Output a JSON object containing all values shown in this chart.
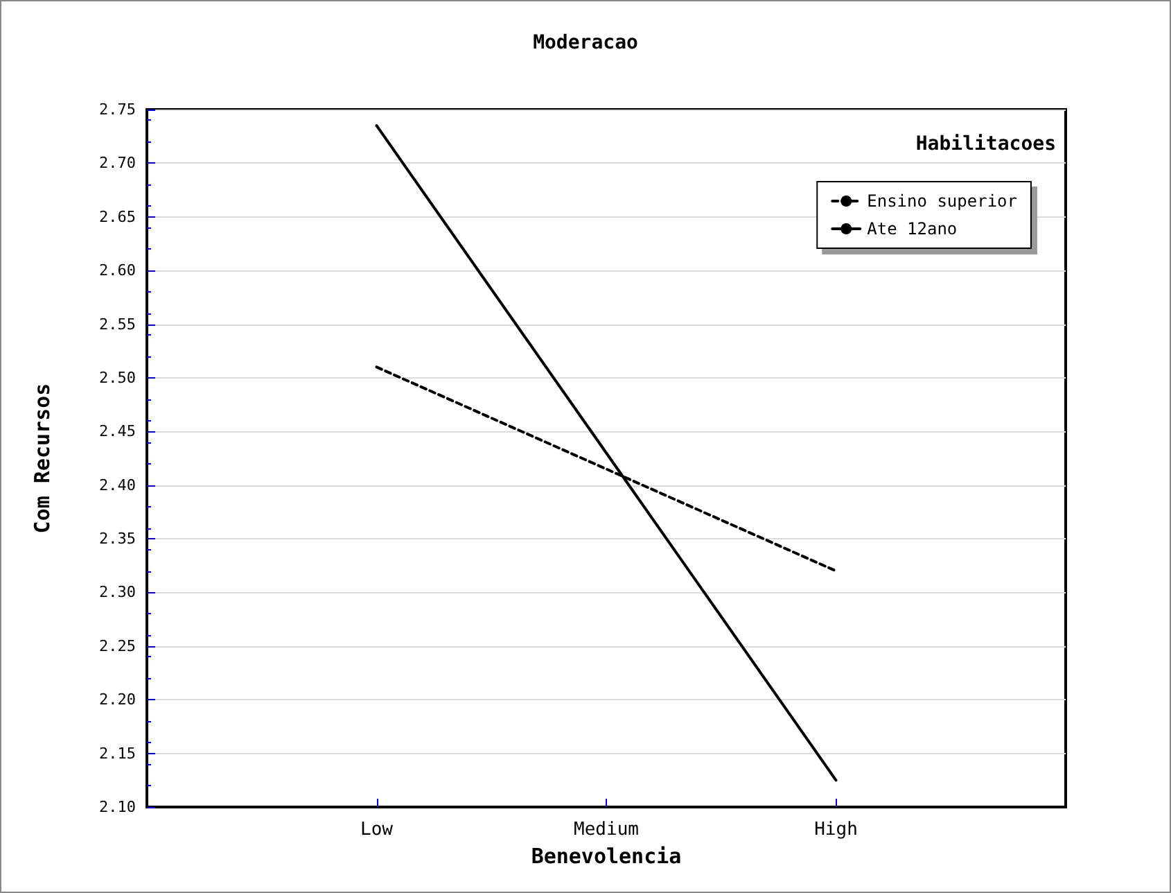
{
  "chart_data": {
    "type": "line",
    "title": "Moderacao",
    "xlabel": "Benevolencia",
    "ylabel": "Com Recursos",
    "legend_title": "Habilitacoes",
    "categories": [
      "Low",
      "Medium",
      "High"
    ],
    "series": [
      {
        "name": "Ensino superior",
        "color": "#000000",
        "line_style": "dashed",
        "values": [
          2.51,
          2.415,
          2.32
        ]
      },
      {
        "name": "Ate 12ano",
        "color": "#000000",
        "line_style": "solid",
        "values": [
          2.735,
          2.43,
          2.125
        ]
      }
    ],
    "ylim": [
      2.1,
      2.75
    ],
    "yticks": [
      {
        "value": 2.1,
        "label": "2.10"
      },
      2.15,
      {
        "value": 2.2,
        "label": "2.20"
      },
      2.25,
      {
        "value": 2.3,
        "label": "2.30"
      },
      2.35,
      {
        "value": 2.4,
        "label": "2.40"
      },
      2.45,
      {
        "value": 2.5,
        "label": "2.50"
      },
      2.55,
      {
        "value": 2.6,
        "label": "2.60"
      },
      2.65,
      {
        "value": 2.7,
        "label": "2.70"
      },
      2.75
    ],
    "grid": "y",
    "legend": "top right",
    "marker": "none"
  }
}
